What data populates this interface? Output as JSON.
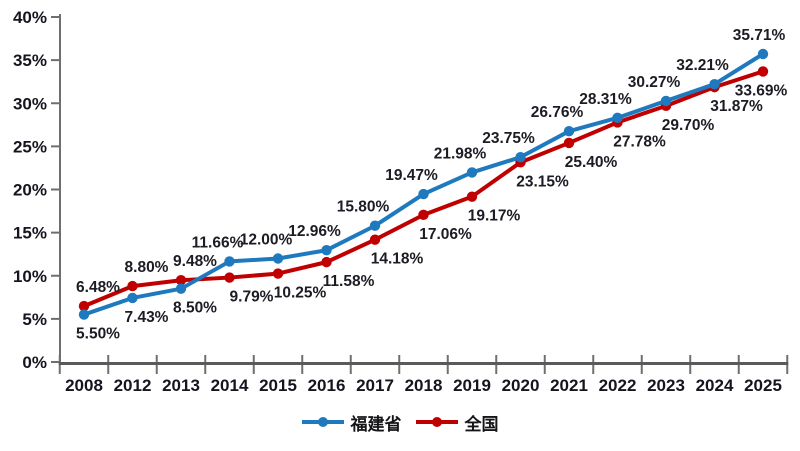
{
  "chart_data": {
    "type": "line",
    "title": "",
    "xlabel": "",
    "ylabel": "",
    "categories": [
      "2008",
      "2012",
      "2013",
      "2014",
      "2015",
      "2016",
      "2017",
      "2018",
      "2019",
      "2020",
      "2021",
      "2022",
      "2023",
      "2024",
      "2025"
    ],
    "series": [
      {
        "name": "福建省",
        "color": "#1f79be",
        "values": [
          5.5,
          7.43,
          8.5,
          11.66,
          12.0,
          12.96,
          15.8,
          19.47,
          21.98,
          23.75,
          26.76,
          28.31,
          30.27,
          32.21,
          35.71
        ],
        "data_labels": [
          "5.50%",
          "7.43%",
          "8.50%",
          "11.66%",
          "12.00%",
          "12.96%",
          "15.80%",
          "19.47%",
          "21.98%",
          "23.75%",
          "26.76%",
          "28.31%",
          "30.27%",
          "32.21%",
          "35.71%"
        ],
        "label_side": [
          "below",
          "below",
          "below",
          "above",
          "above",
          "above",
          "above",
          "above",
          "above",
          "above",
          "above",
          "above",
          "above",
          "above",
          "above"
        ]
      },
      {
        "name": "全国",
        "color": "#c00000",
        "values": [
          6.48,
          8.8,
          9.48,
          9.79,
          10.25,
          11.58,
          14.18,
          17.06,
          19.17,
          23.15,
          25.4,
          27.78,
          29.7,
          31.87,
          33.69
        ],
        "data_labels": [
          "6.48%",
          "8.80%",
          "9.48%",
          "9.79%",
          "10.25%",
          "11.58%",
          "14.18%",
          "17.06%",
          "19.17%",
          "23.15%",
          "25.40%",
          "27.78%",
          "29.70%",
          "31.87%",
          "33.69%"
        ],
        "label_side": [
          "above",
          "above",
          "above",
          "below",
          "below",
          "below",
          "below",
          "below",
          "below",
          "below",
          "below",
          "below",
          "below",
          "below",
          "below"
        ]
      }
    ],
    "ylim": [
      0,
      40
    ],
    "ytick_step": 5,
    "ytick_labels": [
      "0%",
      "5%",
      "10%",
      "15%",
      "20%",
      "25%",
      "30%",
      "35%",
      "40%"
    ],
    "grid": false,
    "legend_position": "bottom"
  },
  "colors": {
    "axis": "#6f6f6f",
    "x_axis_line": "#5a5a5a",
    "tick_text": "#15151f",
    "data_label_text": "#1c1c24",
    "background": "#ffffff"
  }
}
